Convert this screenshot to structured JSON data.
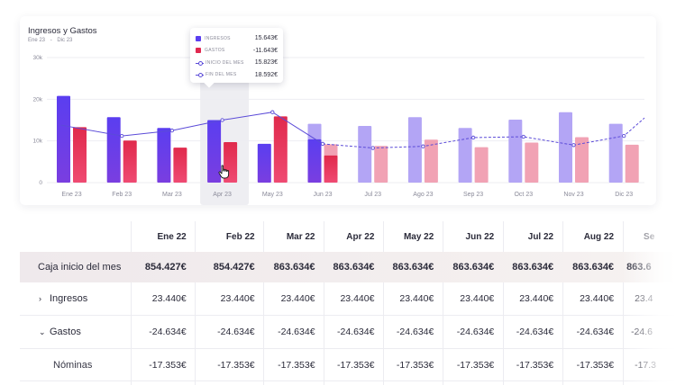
{
  "chart_data": {
    "type": "bar",
    "title": "Ingresos y Gastos",
    "subtitle": [
      "Ene 23",
      "-",
      "Dic 23"
    ],
    "categories": [
      "Ene 23",
      "Feb 23",
      "Mar 23",
      "Apr 23",
      "May 23",
      "Jun 23",
      "Jul 23",
      "Ago 23",
      "Sep 23",
      "Oct 23",
      "Nov 23",
      "Dic 23"
    ],
    "y_ticks": [
      "0",
      "10k",
      "20k",
      "30k"
    ],
    "ylim": [
      0,
      30000
    ],
    "series": [
      {
        "name": "INGRESOS",
        "type": "bar",
        "values": [
          20800,
          15700,
          13100,
          15000,
          9300,
          14100,
          13600,
          15700,
          13100,
          15100,
          16900,
          14100
        ],
        "color": "#5a3ef0",
        "projected_color": "#b3a5f5"
      },
      {
        "name": "GASTOS",
        "type": "bar",
        "values": [
          13300,
          10100,
          8400,
          9700,
          15900,
          9200,
          8800,
          10300,
          8500,
          9600,
          10900,
          9100
        ],
        "color": "#e0284f",
        "projected_color": "#f1a2b4"
      },
      {
        "name": "INICIO DEL MES",
        "type": "line",
        "values": [
          13800,
          11200,
          12500,
          15000,
          16900,
          9300,
          8300,
          8700,
          10800,
          11000,
          9000,
          11200
        ],
        "color": "#5b4bd8"
      }
    ],
    "projected_from_index": 5,
    "jun_overlay": {
      "ingresos": 10400,
      "gastos": 6500
    },
    "highlighted_index": 3,
    "tooltip": [
      {
        "label": "INGRESOS",
        "value": "15.643€",
        "kind": "bar",
        "color": "#5a3ef0"
      },
      {
        "label": "GASTOS",
        "value": "-11.643€",
        "kind": "bar",
        "color": "#e0284f"
      },
      {
        "label": "INICIO DEL MES",
        "value": "15.823€",
        "kind": "line"
      },
      {
        "label": "FIN DEL MES",
        "value": "18.592€",
        "kind": "dashed-line"
      }
    ],
    "grid": true
  },
  "table": {
    "months": [
      "Ene 22",
      "Feb 22",
      "Mar 22",
      "Apr 22",
      "May 22",
      "Jun 22",
      "Jul 22",
      "Aug 22",
      "Se"
    ],
    "rows": [
      {
        "label": "Caja inicio del mes",
        "values": [
          "854.427€",
          "854.427€",
          "863.634€",
          "863.634€",
          "863.634€",
          "863.634€",
          "863.634€",
          "863.634€",
          "863.6"
        ]
      },
      {
        "label": "Ingresos",
        "chevron": "›",
        "values": [
          "23.440€",
          "23.440€",
          "23.440€",
          "23.440€",
          "23.440€",
          "23.440€",
          "23.440€",
          "23.440€",
          "23.4"
        ]
      },
      {
        "label": "Gastos",
        "chevron": "⌄",
        "values": [
          "-24.634€",
          "-24.634€",
          "-24.634€",
          "-24.634€",
          "-24.634€",
          "-24.634€",
          "-24.634€",
          "-24.634€",
          "-24.6"
        ]
      },
      {
        "label": "Nóminas",
        "values": [
          "-17.353€",
          "-17.353€",
          "-17.353€",
          "-17.353€",
          "-17.353€",
          "-17.353€",
          "-17.353€",
          "-17.353€",
          "-17.3"
        ]
      }
    ]
  }
}
